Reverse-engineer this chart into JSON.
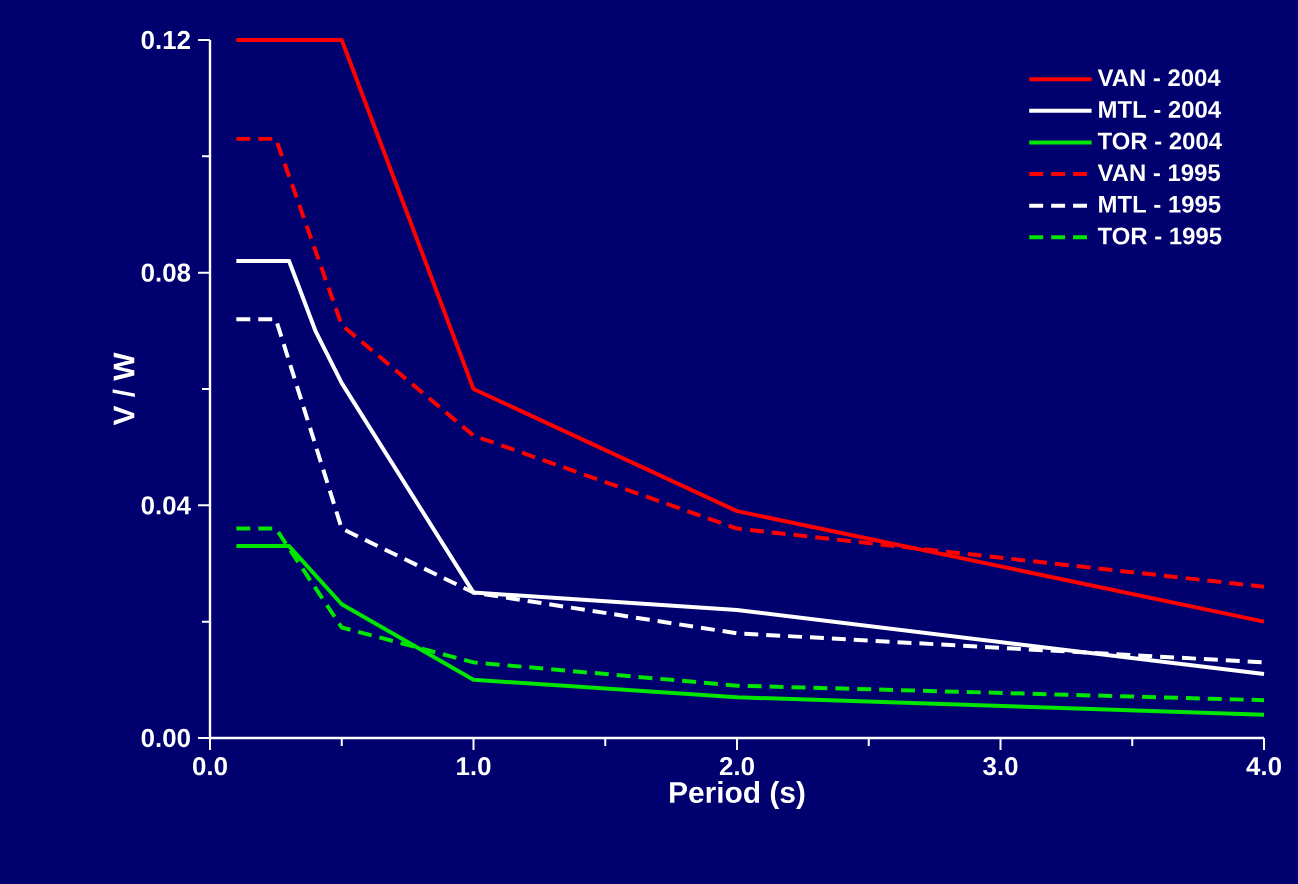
{
  "chart_data": {
    "type": "line",
    "xlabel": "Period (s)",
    "ylabel": "V / W",
    "xlim": [
      0,
      4
    ],
    "ylim": [
      0,
      0.12
    ],
    "xticks": [
      {
        "value": 0,
        "label": "0.0"
      },
      {
        "value": 1,
        "label": "1.0"
      },
      {
        "value": 2,
        "label": "2.0"
      },
      {
        "value": 3,
        "label": "3.0"
      },
      {
        "value": 4,
        "label": "4.0"
      }
    ],
    "yticks": [
      {
        "value": 0,
        "label": "0.00"
      },
      {
        "value": 0.04,
        "label": "0.04"
      },
      {
        "value": 0.08,
        "label": "0.08"
      },
      {
        "value": 0.12,
        "label": "0.12"
      }
    ],
    "legend": "top right",
    "marker": "none",
    "grid": false,
    "series": [
      {
        "name": "VAN - 2004",
        "color": "#ff0000",
        "line_style": "solid",
        "x": [
          0.1,
          0.5,
          1.0,
          2.0,
          4.0
        ],
        "values": [
          0.12,
          0.12,
          0.06,
          0.039,
          0.02
        ]
      },
      {
        "name": "MTL - 2004",
        "color": "#ffffff",
        "line_style": "solid",
        "x": [
          0.1,
          0.3,
          0.4,
          0.5,
          1.0,
          2.0,
          4.0
        ],
        "values": [
          0.082,
          0.082,
          0.07,
          0.061,
          0.025,
          0.022,
          0.011
        ]
      },
      {
        "name": "TOR - 2004",
        "color": "#00e600",
        "line_style": "solid",
        "x": [
          0.1,
          0.3,
          0.5,
          1.0,
          2.0,
          4.0
        ],
        "values": [
          0.033,
          0.033,
          0.023,
          0.01,
          0.007,
          0.004
        ]
      },
      {
        "name": "VAN - 1995",
        "color": "#ff0000",
        "line_style": "dashed",
        "x": [
          0.1,
          0.25,
          0.5,
          1.0,
          2.0,
          4.0
        ],
        "values": [
          0.103,
          0.103,
          0.071,
          0.052,
          0.036,
          0.026
        ]
      },
      {
        "name": "MTL - 1995",
        "color": "#ffffff",
        "line_style": "dashed",
        "x": [
          0.1,
          0.25,
          0.5,
          1.0,
          2.0,
          4.0
        ],
        "values": [
          0.072,
          0.072,
          0.036,
          0.025,
          0.018,
          0.013
        ]
      },
      {
        "name": "TOR - 1995",
        "color": "#00e600",
        "line_style": "dashed",
        "x": [
          0.1,
          0.25,
          0.5,
          1.0,
          2.0,
          4.0
        ],
        "values": [
          0.036,
          0.036,
          0.019,
          0.013,
          0.009,
          0.0065
        ]
      }
    ]
  }
}
